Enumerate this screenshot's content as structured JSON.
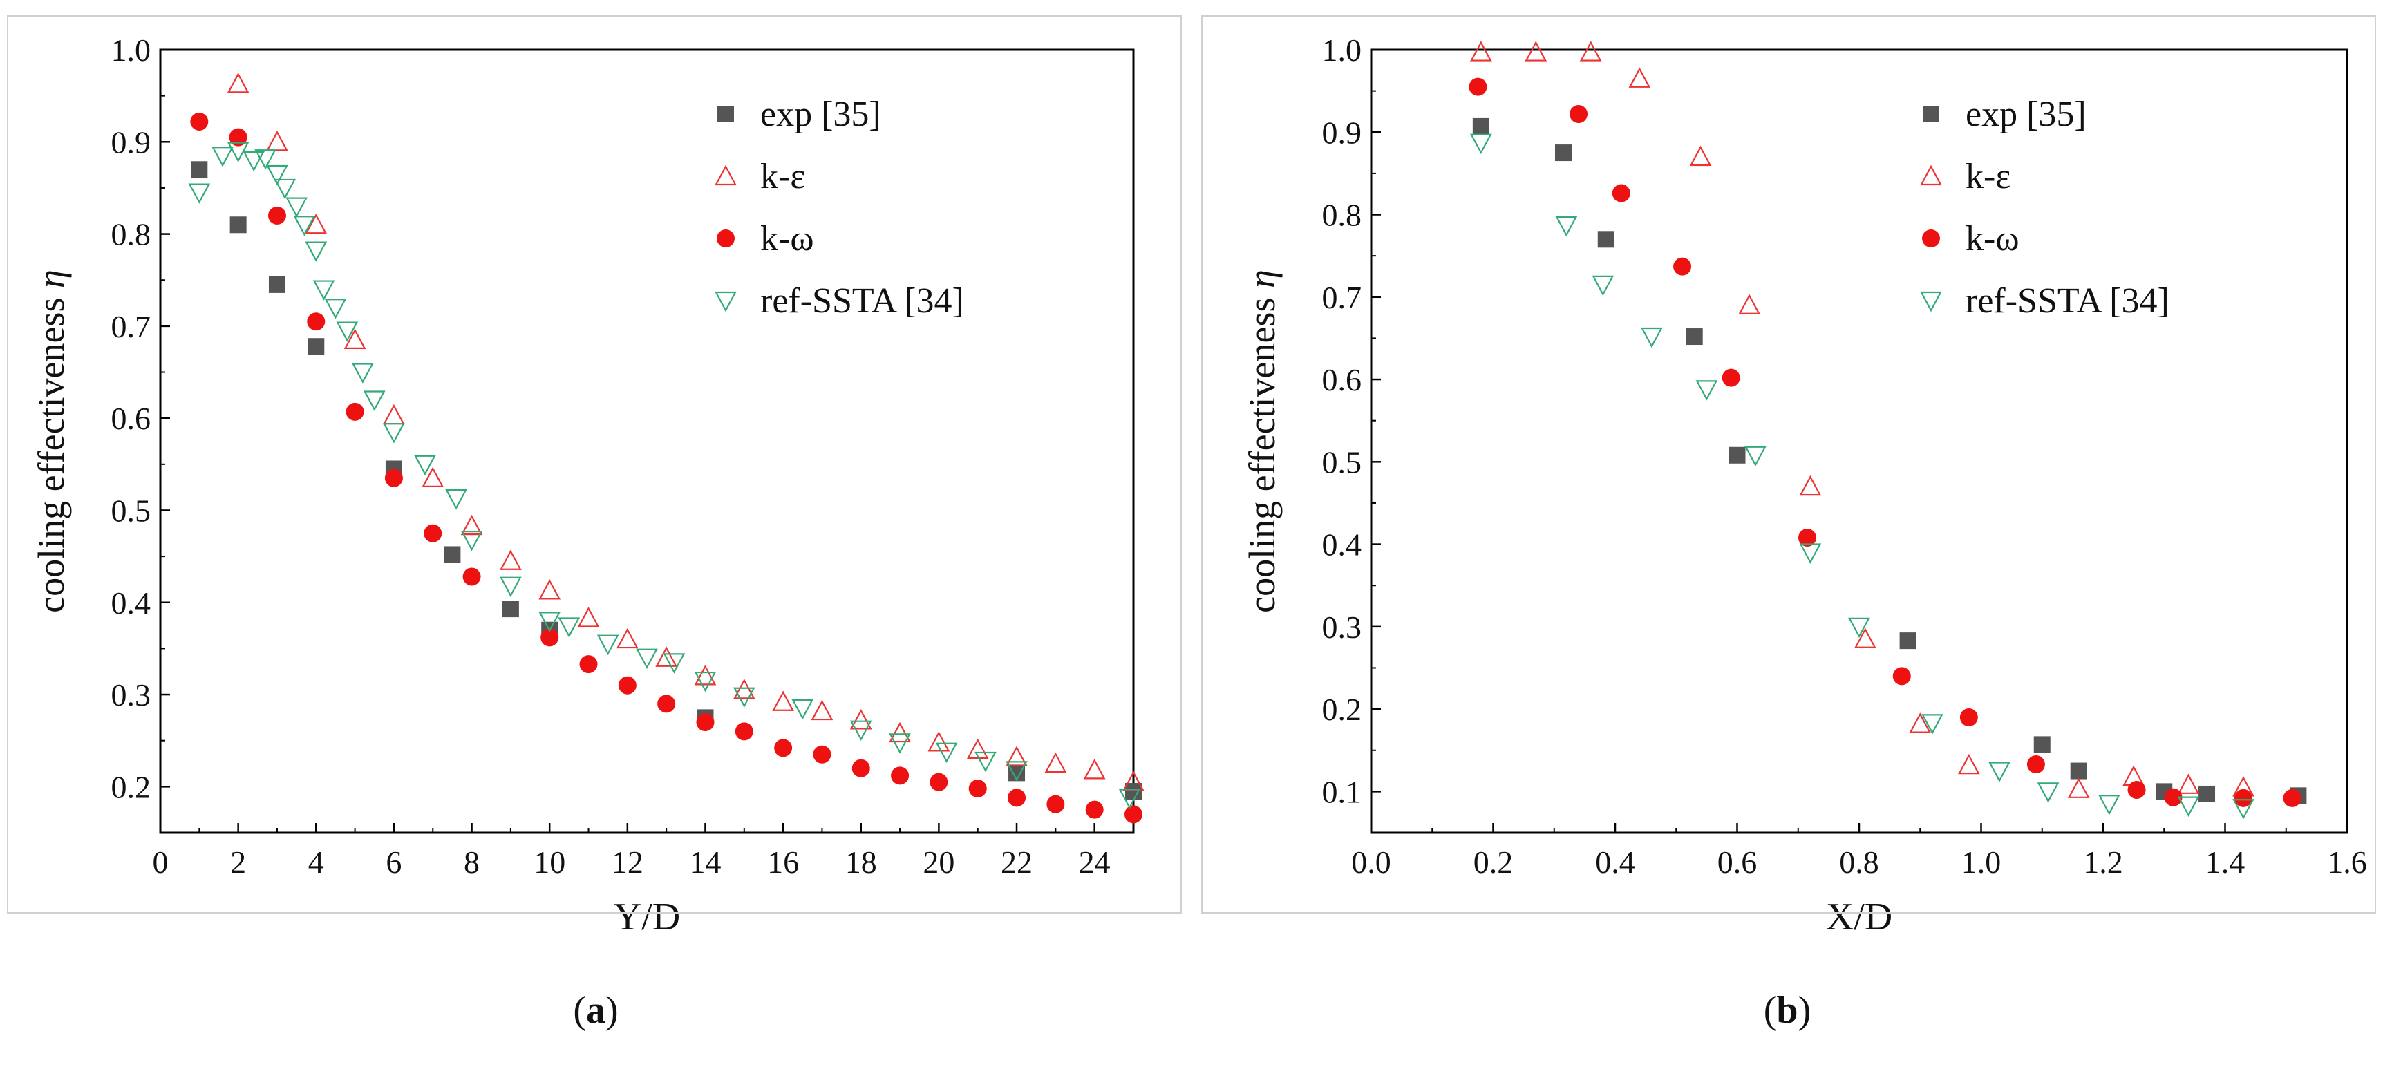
{
  "chart_data": [
    {
      "type": "scatter",
      "panel_label": "a",
      "xlabel": "Y/D",
      "ylabel": "cooling effectiveness",
      "ylabel_symbol": "η",
      "xlim": [
        0,
        25
      ],
      "ylim": [
        0.15,
        1.0
      ],
      "xticks": [
        0,
        2,
        4,
        6,
        8,
        10,
        12,
        14,
        16,
        18,
        20,
        22,
        24
      ],
      "yticks": [
        0.2,
        0.3,
        0.4,
        0.5,
        0.6,
        0.7,
        0.8,
        0.9,
        1.0
      ],
      "ytick_labels": [
        "0.2",
        "0.3",
        "0.4",
        "0.5",
        "0.6",
        "0.7",
        "0.8",
        "0.9",
        "1.0"
      ],
      "legend_position": "top-right",
      "series": [
        {
          "name": "exp [35]",
          "marker": "square",
          "color": "#555555",
          "x": [
            1,
            2,
            3,
            4,
            6,
            7.5,
            9,
            10,
            14,
            22,
            25
          ],
          "y": [
            0.87,
            0.81,
            0.745,
            0.678,
            0.545,
            0.452,
            0.393,
            0.37,
            0.275,
            0.215,
            0.195
          ]
        },
        {
          "name": "k-ε",
          "marker": "triangle-up",
          "color": "#ee3333",
          "x": [
            2,
            3,
            4,
            5,
            6,
            7,
            8,
            9,
            10,
            11,
            12,
            13,
            14,
            15,
            16,
            17,
            18,
            19,
            20,
            21,
            22,
            23,
            24,
            25
          ],
          "y": [
            0.963,
            0.9,
            0.81,
            0.685,
            0.603,
            0.535,
            0.483,
            0.445,
            0.413,
            0.383,
            0.36,
            0.34,
            0.32,
            0.305,
            0.292,
            0.282,
            0.272,
            0.258,
            0.248,
            0.24,
            0.232,
            0.225,
            0.218,
            0.205
          ]
        },
        {
          "name": "k-ω",
          "marker": "circle",
          "color": "#ee1111",
          "x": [
            1,
            2,
            3,
            4,
            5,
            6,
            7,
            8,
            10,
            11,
            12,
            13,
            14,
            15,
            16,
            17,
            18,
            19,
            20,
            21,
            22,
            23,
            24,
            25
          ],
          "y": [
            0.922,
            0.905,
            0.82,
            0.705,
            0.607,
            0.535,
            0.475,
            0.428,
            0.362,
            0.333,
            0.31,
            0.29,
            0.27,
            0.26,
            0.242,
            0.235,
            0.22,
            0.212,
            0.205,
            0.198,
            0.188,
            0.181,
            0.175,
            0.17
          ]
        },
        {
          "name": "ref-SSTA [34]",
          "marker": "triangle-down",
          "color": "#33aa77",
          "x": [
            1,
            1.6,
            2,
            2.4,
            2.7,
            3.0,
            3.2,
            3.5,
            3.7,
            4.0,
            4.2,
            4.5,
            4.8,
            5.2,
            5.5,
            6.0,
            6.8,
            7.6,
            8.0,
            9.0,
            10.0,
            10.5,
            11.5,
            12.5,
            13.2,
            14.0,
            15.0,
            16.5,
            18.0,
            19.0,
            20.2,
            21.2,
            22.0,
            24.9
          ],
          "y": [
            0.845,
            0.885,
            0.89,
            0.88,
            0.882,
            0.865,
            0.85,
            0.83,
            0.81,
            0.782,
            0.74,
            0.72,
            0.695,
            0.65,
            0.62,
            0.585,
            0.55,
            0.513,
            0.468,
            0.418,
            0.38,
            0.374,
            0.355,
            0.34,
            0.335,
            0.315,
            0.298,
            0.285,
            0.262,
            0.248,
            0.238,
            0.228,
            0.218,
            0.188
          ]
        }
      ]
    },
    {
      "type": "scatter",
      "panel_label": "b",
      "xlabel": "X/D",
      "ylabel": "cooling effectiveness",
      "ylabel_symbol": "η",
      "xlim": [
        0,
        1.6
      ],
      "ylim": [
        0.05,
        1.0
      ],
      "xticks": [
        0,
        0.2,
        0.4,
        0.6,
        0.8,
        1.0,
        1.2,
        1.4,
        1.6
      ],
      "yticks": [
        0.1,
        0.2,
        0.3,
        0.4,
        0.5,
        0.6,
        0.7,
        0.8,
        0.9,
        1.0
      ],
      "ytick_labels": [
        "0.1",
        "0.2",
        "0.3",
        "0.4",
        "0.5",
        "0.6",
        "0.7",
        "0.8",
        "0.9",
        "1.0"
      ],
      "legend_position": "top-right",
      "series": [
        {
          "name": "exp [35]",
          "marker": "square",
          "color": "#555555",
          "x": [
            0.18,
            0.315,
            0.385,
            0.53,
            0.6,
            0.88,
            1.1,
            1.16,
            1.3,
            1.37,
            1.52
          ],
          "y": [
            0.907,
            0.875,
            0.77,
            0.652,
            0.508,
            0.283,
            0.157,
            0.125,
            0.1,
            0.097,
            0.095
          ]
        },
        {
          "name": "k-ε",
          "marker": "triangle-up",
          "color": "#ee3333",
          "x": [
            0.18,
            0.27,
            0.36,
            0.44,
            0.54,
            0.62,
            0.72,
            0.81,
            0.9,
            0.98,
            1.16,
            1.25,
            1.34,
            1.43
          ],
          "y": [
            0.997,
            0.997,
            0.997,
            0.965,
            0.87,
            0.69,
            0.47,
            0.285,
            0.182,
            0.132,
            0.103,
            0.118,
            0.108,
            0.105
          ]
        },
        {
          "name": "k-ω",
          "marker": "circle",
          "color": "#ee1111",
          "x": [
            0.175,
            0.34,
            0.41,
            0.51,
            0.59,
            0.715,
            0.87,
            0.98,
            1.09,
            1.255,
            1.315,
            1.43,
            1.51
          ],
          "y": [
            0.955,
            0.922,
            0.826,
            0.737,
            0.602,
            0.408,
            0.24,
            0.19,
            0.133,
            0.102,
            0.093,
            0.092,
            0.092
          ]
        },
        {
          "name": "ref-SSTA [34]",
          "marker": "triangle-down",
          "color": "#33aa77",
          "x": [
            0.18,
            0.32,
            0.38,
            0.46,
            0.55,
            0.63,
            0.72,
            0.8,
            0.92,
            1.03,
            1.11,
            1.21,
            1.34,
            1.43
          ],
          "y": [
            0.887,
            0.787,
            0.715,
            0.652,
            0.588,
            0.508,
            0.39,
            0.3,
            0.183,
            0.125,
            0.1,
            0.085,
            0.083,
            0.08
          ]
        }
      ]
    }
  ]
}
